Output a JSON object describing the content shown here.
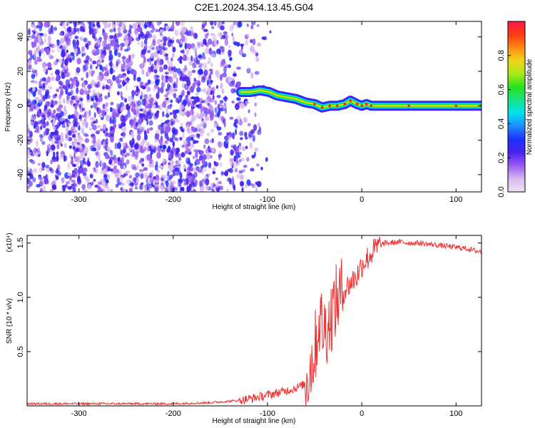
{
  "title": "C2E1.2024.354.13.45.G04",
  "chart_data": [
    {
      "type": "heatmap",
      "title": "C2E1.2024.354.13.45.G04",
      "xlabel": "Height of straight line (km)",
      "ylabel": "Frequency (Hz)",
      "xlim": [
        -355,
        127
      ],
      "ylim": [
        -50,
        49
      ],
      "xticks": [
        -300,
        -200,
        -100,
        0,
        100
      ],
      "yticks": [
        -40,
        -20,
        0,
        20,
        40
      ],
      "colorbar": {
        "label": "Normalized spectral amplitude",
        "range": [
          0,
          1
        ],
        "ticks": [
          0.0,
          0.2,
          0.4,
          0.6,
          0.8
        ],
        "colors": [
          "#f0e4f7",
          "#d7b9ef",
          "#9b5cf2",
          "#4a23ef",
          "#1d2fff",
          "#1c8cff",
          "#00e1f0",
          "#17e389",
          "#28e31b",
          "#a8ea16",
          "#f0d61a",
          "#ff8a13",
          "#ff3b15",
          "#ff1748"
        ]
      },
      "noise_region": {
        "x": [
          -355,
          -115
        ],
        "y": [
          -50,
          49
        ],
        "amplitude": [
          0.05,
          0.3
        ]
      },
      "signal_ridge": [
        {
          "x": -128,
          "y": 8
        },
        {
          "x": -118,
          "y": 8
        },
        {
          "x": -108,
          "y": 9
        },
        {
          "x": -98,
          "y": 8
        },
        {
          "x": -90,
          "y": 6
        },
        {
          "x": -80,
          "y": 5
        },
        {
          "x": -70,
          "y": 4
        },
        {
          "x": -60,
          "y": 2
        },
        {
          "x": -50,
          "y": 1
        },
        {
          "x": -42,
          "y": -1
        },
        {
          "x": -34,
          "y": 0
        },
        {
          "x": -26,
          "y": 0
        },
        {
          "x": -18,
          "y": 1
        },
        {
          "x": -12,
          "y": 3
        },
        {
          "x": -5,
          "y": 1
        },
        {
          "x": 0,
          "y": 0
        },
        {
          "x": 5,
          "y": 1
        },
        {
          "x": 10,
          "y": 0
        },
        {
          "x": 50,
          "y": 0
        },
        {
          "x": 100,
          "y": 0
        },
        {
          "x": 127,
          "y": 0
        }
      ]
    },
    {
      "type": "line",
      "xlabel": "Height of straight line (km)",
      "ylabel": "SNR (10 * v/v)",
      "scale_label": "(x10⁴)",
      "xlim": [
        -355,
        127
      ],
      "ylim": [
        0,
        1.57
      ],
      "xticks": [
        -300,
        -200,
        -100,
        0,
        100
      ],
      "yticks": [
        0.5,
        1.0,
        1.5
      ],
      "series": [
        {
          "color": "#ee3333",
          "x": [
            -355,
            -300,
            -250,
            -200,
            -160,
            -130,
            -110,
            -90,
            -75,
            -60,
            -50,
            -45,
            -40,
            -35,
            -30,
            -25,
            -20,
            -15,
            -10,
            -5,
            0,
            5,
            10,
            15,
            20,
            25,
            30,
            40,
            50,
            60,
            70,
            80,
            90,
            100,
            110,
            120,
            127
          ],
          "y": [
            0.02,
            0.02,
            0.02,
            0.02,
            0.03,
            0.05,
            0.08,
            0.12,
            0.15,
            0.2,
            0.5,
            0.8,
            0.7,
            0.75,
            0.9,
            1.0,
            1.05,
            1.1,
            1.15,
            1.2,
            1.3,
            1.35,
            1.4,
            1.45,
            1.48,
            1.5,
            1.5,
            1.51,
            1.5,
            1.5,
            1.49,
            1.48,
            1.47,
            1.46,
            1.45,
            1.43,
            1.42
          ]
        }
      ]
    }
  ]
}
